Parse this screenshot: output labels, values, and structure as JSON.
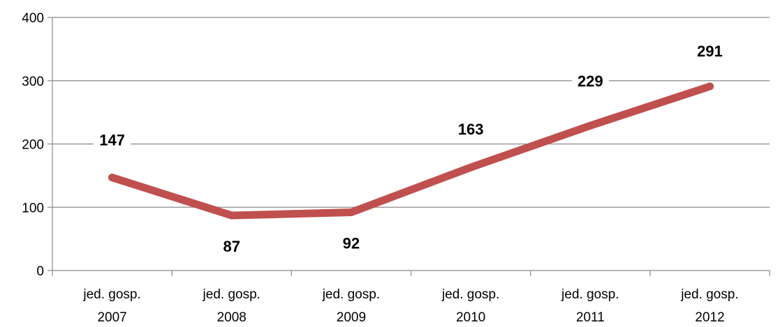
{
  "chart_data": {
    "type": "line",
    "categories": [
      [
        "jed. gosp.",
        "2007"
      ],
      [
        "jed. gosp.",
        "2008"
      ],
      [
        "jed. gosp.",
        "2009"
      ],
      [
        "jed. gosp.",
        "2010"
      ],
      [
        "jed. gosp.",
        "2011"
      ],
      [
        "jed. gosp.",
        "2012"
      ]
    ],
    "series": [
      {
        "values": [
          147,
          87,
          92,
          163,
          229,
          291
        ],
        "color": "#c0504d"
      }
    ],
    "data_labels": [
      "147",
      "87",
      "92",
      "163",
      "229",
      "291"
    ],
    "y_ticks": [
      "0",
      "100",
      "200",
      "300",
      "400"
    ],
    "ylim": [
      0,
      400
    ],
    "grid": true,
    "legend": "none"
  }
}
